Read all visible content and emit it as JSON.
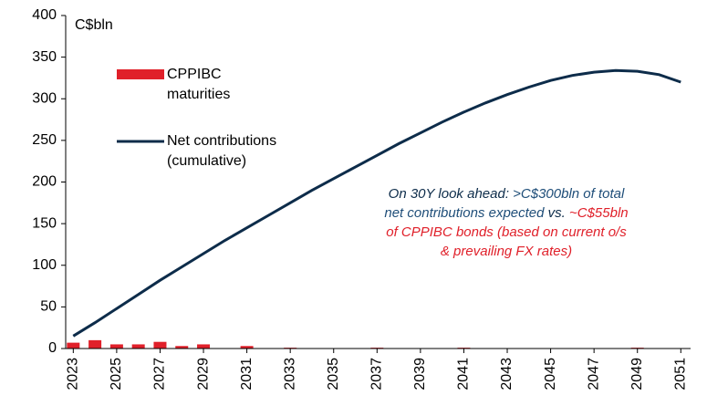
{
  "chart_data": {
    "type": "bar-line",
    "unit_label": "C$bln",
    "x": [
      2023,
      2024,
      2025,
      2026,
      2027,
      2028,
      2029,
      2030,
      2031,
      2032,
      2033,
      2034,
      2035,
      2036,
      2037,
      2038,
      2039,
      2040,
      2041,
      2042,
      2043,
      2044,
      2045,
      2046,
      2047,
      2048,
      2049,
      2050,
      2051
    ],
    "xlim": [
      2022.65,
      2051.45
    ],
    "xticks": [
      2023,
      2025,
      2027,
      2029,
      2031,
      2033,
      2035,
      2037,
      2039,
      2041,
      2043,
      2045,
      2047,
      2049,
      2051
    ],
    "ylim": [
      0,
      400
    ],
    "yticks": [
      0,
      50,
      100,
      150,
      200,
      250,
      300,
      350,
      400
    ],
    "series": [
      {
        "name": "CPPIBC maturities",
        "type": "bar",
        "color": "#e0202a",
        "values": [
          7,
          10,
          5,
          5,
          8,
          3,
          5,
          0,
          3,
          0,
          1,
          0,
          0,
          0,
          1,
          0,
          0,
          0,
          1,
          0,
          0,
          0,
          0,
          0,
          0,
          0,
          1,
          0,
          0
        ]
      },
      {
        "name": "Net contributions (cumulative)",
        "type": "line",
        "color": "#0d2c4a",
        "values": [
          15,
          31,
          48,
          65,
          82,
          98,
          114,
          130,
          145,
          160,
          175,
          190,
          204,
          218,
          232,
          246,
          259,
          272,
          284,
          295,
          305,
          314,
          322,
          328,
          332,
          334,
          333,
          329,
          320
        ]
      }
    ],
    "annotation_lines": [
      [
        {
          "text": "On 30Y look ahead: ",
          "color": "#0d2c4a"
        },
        {
          "text": ">C$300bln of total",
          "color": "#1f4e79"
        }
      ],
      [
        {
          "text": "net contributions expected ",
          "color": "#1f4e79"
        },
        {
          "text": "vs. ",
          "color": "#0d2c4a"
        },
        {
          "text": "~C$55bln",
          "color": "#e0202a"
        }
      ],
      [
        {
          "text": "of CPPIBC bonds (based on current o/s",
          "color": "#e0202a"
        }
      ],
      [
        {
          "text": "& prevailing FX rates)",
          "color": "#e0202a"
        }
      ]
    ]
  }
}
